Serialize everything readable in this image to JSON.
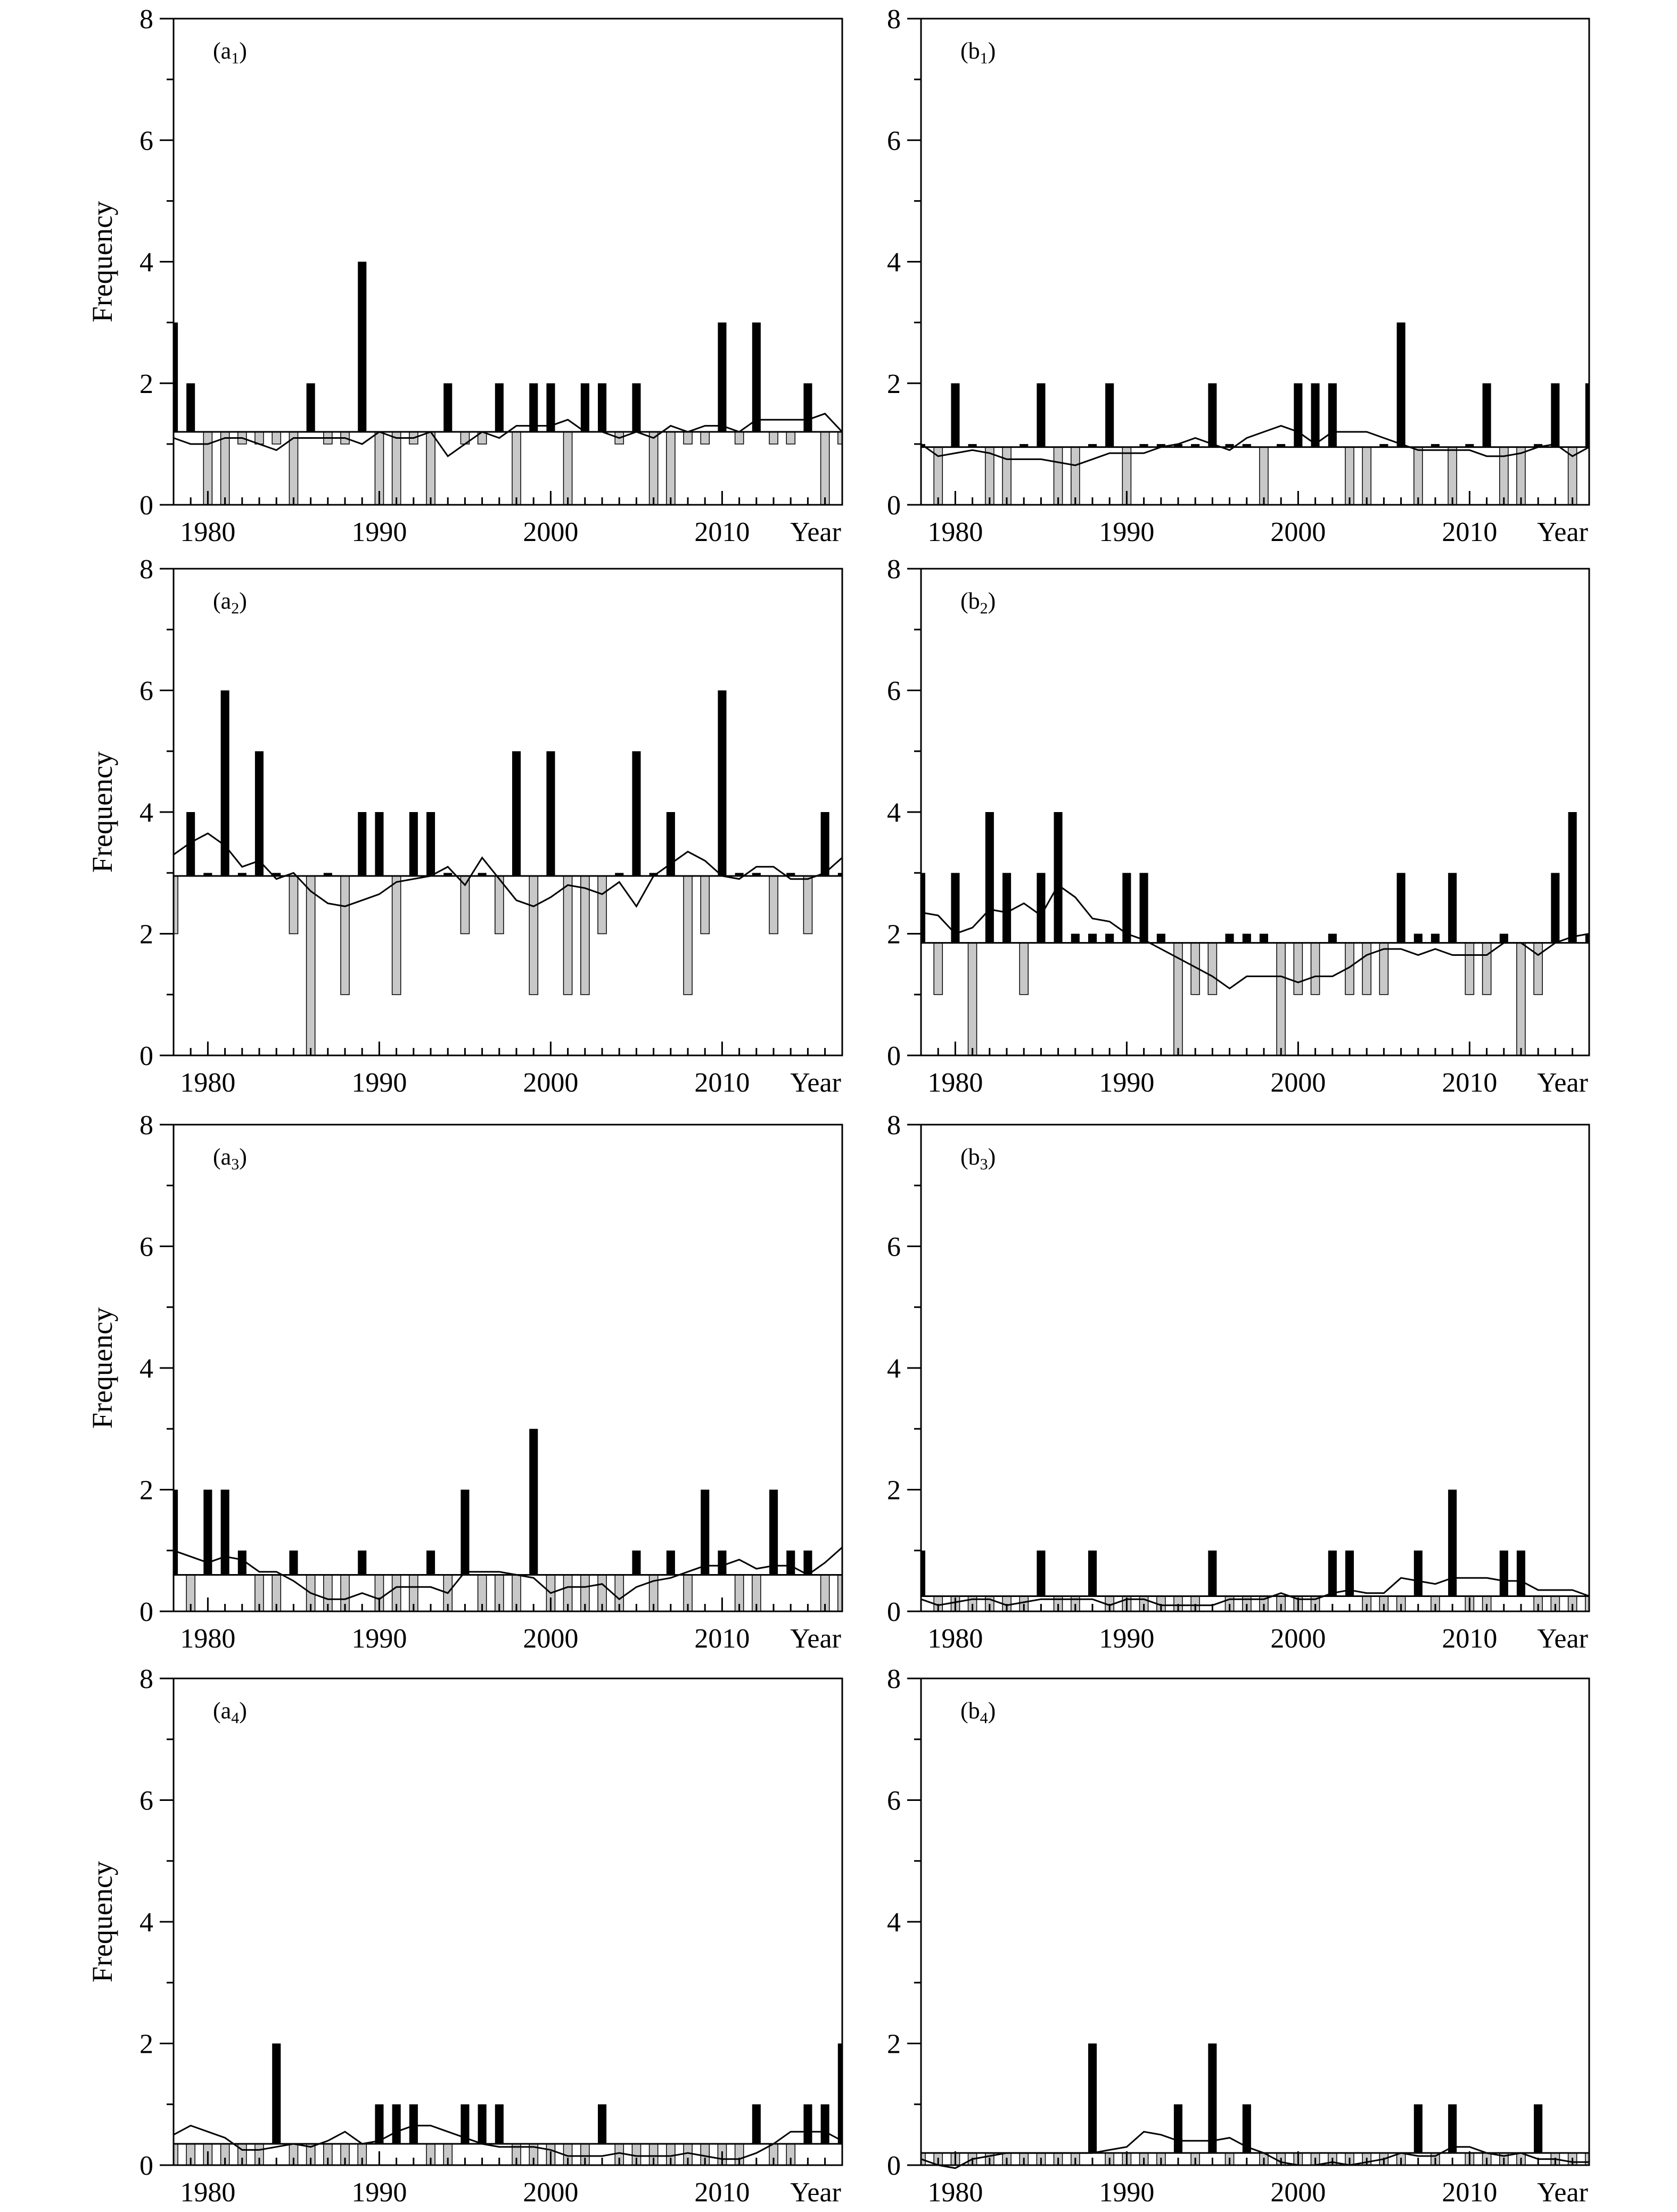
{
  "colors": {
    "above_bar": "#000000",
    "below_bar": "#c8c8c8",
    "line": "#000000",
    "axis": "#000000"
  },
  "chart_data": [
    {
      "type": "bar",
      "panel": "a1",
      "label_main": "(a",
      "label_sub": "1",
      "label_close": ")",
      "ylabel": "Frequency",
      "xlabel": "Year",
      "xlim": [
        1978,
        2017
      ],
      "ylim": [
        0,
        8
      ],
      "yticks": [
        0,
        2,
        4,
        6,
        8
      ],
      "xticks": [
        1980,
        1990,
        2000,
        2010
      ],
      "baseline": 1.2,
      "x": [
        1978,
        1979,
        1980,
        1981,
        1982,
        1983,
        1984,
        1985,
        1986,
        1987,
        1988,
        1989,
        1990,
        1991,
        1992,
        1993,
        1994,
        1995,
        1996,
        1997,
        1998,
        1999,
        2000,
        2001,
        2002,
        2003,
        2004,
        2005,
        2006,
        2007,
        2008,
        2009,
        2010,
        2011,
        2012,
        2013,
        2014,
        2015,
        2016,
        2017
      ],
      "values": [
        3,
        2,
        0,
        0,
        1,
        1,
        1,
        0,
        2,
        1,
        1,
        4,
        0,
        0,
        1,
        0,
        2,
        1,
        1,
        2,
        0,
        2,
        2,
        0,
        2,
        2,
        1,
        2,
        0,
        0,
        1,
        1,
        3,
        1,
        3,
        1,
        1,
        2,
        0,
        1
      ],
      "trend": [
        1.1,
        1.0,
        1.0,
        1.1,
        1.1,
        1.0,
        0.9,
        1.1,
        1.1,
        1.1,
        1.1,
        1.0,
        1.2,
        1.1,
        1.1,
        1.2,
        0.8,
        1.0,
        1.2,
        1.1,
        1.3,
        1.3,
        1.3,
        1.4,
        1.2,
        1.2,
        1.1,
        1.2,
        1.1,
        1.3,
        1.2,
        1.3,
        1.3,
        1.2,
        1.4,
        1.4,
        1.4,
        1.4,
        1.5,
        1.2
      ]
    },
    {
      "type": "bar",
      "panel": "b1",
      "label_main": "(b",
      "label_sub": "1",
      "label_close": ")",
      "xlabel": "Year",
      "xlim": [
        1978,
        2017
      ],
      "ylim": [
        0,
        8
      ],
      "yticks": [
        0,
        2,
        4,
        6,
        8
      ],
      "xticks": [
        1980,
        1990,
        2000,
        2010
      ],
      "baseline": 0.95,
      "x": [
        1978,
        1979,
        1980,
        1981,
        1982,
        1983,
        1984,
        1985,
        1986,
        1987,
        1988,
        1989,
        1990,
        1991,
        1992,
        1993,
        1994,
        1995,
        1996,
        1997,
        1998,
        1999,
        2000,
        2001,
        2002,
        2003,
        2004,
        2005,
        2006,
        2007,
        2008,
        2009,
        2010,
        2011,
        2012,
        2013,
        2014,
        2015,
        2016,
        2017
      ],
      "values": [
        1,
        0,
        2,
        1,
        0,
        0,
        1,
        2,
        0,
        0,
        1,
        2,
        0,
        1,
        1,
        1,
        1,
        2,
        1,
        1,
        0,
        1,
        2,
        2,
        2,
        0,
        0,
        1,
        3,
        0,
        1,
        0,
        1,
        2,
        0,
        0,
        1,
        2,
        0,
        2
      ],
      "trend": [
        1.0,
        0.8,
        0.85,
        0.9,
        0.85,
        0.75,
        0.75,
        0.75,
        0.7,
        0.65,
        0.75,
        0.85,
        0.85,
        0.85,
        0.95,
        1.0,
        1.1,
        1.0,
        0.9,
        1.1,
        1.2,
        1.3,
        1.2,
        1.0,
        1.2,
        1.2,
        1.2,
        1.1,
        1.0,
        0.9,
        0.9,
        0.9,
        0.9,
        0.8,
        0.8,
        0.85,
        0.95,
        1.0,
        0.8,
        0.95
      ]
    },
    {
      "type": "bar",
      "panel": "a2",
      "label_main": "(a",
      "label_sub": "2",
      "label_close": ")",
      "ylabel": "Frequency",
      "xlabel": "Year",
      "xlim": [
        1978,
        2017
      ],
      "ylim": [
        0,
        8
      ],
      "yticks": [
        0,
        2,
        4,
        6,
        8
      ],
      "xticks": [
        1980,
        1990,
        2000,
        2010
      ],
      "baseline": 2.95,
      "x": [
        1978,
        1979,
        1980,
        1981,
        1982,
        1983,
        1984,
        1985,
        1986,
        1987,
        1988,
        1989,
        1990,
        1991,
        1992,
        1993,
        1994,
        1995,
        1996,
        1997,
        1998,
        1999,
        2000,
        2001,
        2002,
        2003,
        2004,
        2005,
        2006,
        2007,
        2008,
        2009,
        2010,
        2011,
        2012,
        2013,
        2014,
        2015,
        2016,
        2017
      ],
      "values": [
        2,
        4,
        3,
        6,
        3,
        5,
        3,
        2,
        0,
        3,
        1,
        4,
        4,
        1,
        4,
        4,
        3,
        2,
        3,
        2,
        5,
        1,
        5,
        1,
        1,
        2,
        3,
        5,
        3,
        4,
        1,
        2,
        6,
        3,
        3,
        2,
        3,
        2,
        4,
        3
      ],
      "trend": [
        3.3,
        3.5,
        3.65,
        3.45,
        3.1,
        3.2,
        2.9,
        3.0,
        2.7,
        2.5,
        2.45,
        2.55,
        2.65,
        2.85,
        2.9,
        2.95,
        3.1,
        2.8,
        3.25,
        2.9,
        2.55,
        2.45,
        2.6,
        2.8,
        2.75,
        2.65,
        2.85,
        2.45,
        2.95,
        3.15,
        3.35,
        3.2,
        2.95,
        2.9,
        3.1,
        3.1,
        2.9,
        2.9,
        3.0,
        3.25
      ]
    },
    {
      "type": "bar",
      "panel": "b2",
      "label_main": "(b",
      "label_sub": "2",
      "label_close": ")",
      "xlabel": "Year",
      "xlim": [
        1978,
        2017
      ],
      "ylim": [
        0,
        8
      ],
      "yticks": [
        0,
        2,
        4,
        6,
        8
      ],
      "xticks": [
        1980,
        1990,
        2000,
        2010
      ],
      "baseline": 1.85,
      "x": [
        1978,
        1979,
        1980,
        1981,
        1982,
        1983,
        1984,
        1985,
        1986,
        1987,
        1988,
        1989,
        1990,
        1991,
        1992,
        1993,
        1994,
        1995,
        1996,
        1997,
        1998,
        1999,
        2000,
        2001,
        2002,
        2003,
        2004,
        2005,
        2006,
        2007,
        2008,
        2009,
        2010,
        2011,
        2012,
        2013,
        2014,
        2015,
        2016,
        2017
      ],
      "values": [
        3,
        1,
        3,
        0,
        4,
        3,
        1,
        3,
        4,
        2,
        2,
        2,
        3,
        3,
        2,
        0,
        1,
        1,
        2,
        2,
        2,
        0,
        1,
        1,
        2,
        1,
        1,
        1,
        3,
        2,
        2,
        3,
        1,
        1,
        2,
        0,
        1,
        3,
        4,
        2
      ],
      "trend": [
        2.35,
        2.3,
        2.0,
        2.1,
        2.4,
        2.35,
        2.5,
        2.3,
        2.8,
        2.6,
        2.25,
        2.2,
        2.0,
        1.9,
        1.75,
        1.6,
        1.45,
        1.3,
        1.1,
        1.3,
        1.3,
        1.3,
        1.2,
        1.3,
        1.3,
        1.45,
        1.65,
        1.75,
        1.75,
        1.65,
        1.75,
        1.65,
        1.65,
        1.65,
        1.85,
        1.85,
        1.65,
        1.85,
        1.95,
        2.0
      ]
    },
    {
      "type": "bar",
      "panel": "a3",
      "label_main": "(a",
      "label_sub": "3",
      "label_close": ")",
      "ylabel": "Frequency",
      "xlabel": "Year",
      "xlim": [
        1978,
        2017
      ],
      "ylim": [
        0,
        8
      ],
      "yticks": [
        0,
        2,
        4,
        6,
        8
      ],
      "xticks": [
        1980,
        1990,
        2000,
        2010
      ],
      "baseline": 0.6,
      "x": [
        1978,
        1979,
        1980,
        1981,
        1982,
        1983,
        1984,
        1985,
        1986,
        1987,
        1988,
        1989,
        1990,
        1991,
        1992,
        1993,
        1994,
        1995,
        1996,
        1997,
        1998,
        1999,
        2000,
        2001,
        2002,
        2003,
        2004,
        2005,
        2006,
        2007,
        2008,
        2009,
        2010,
        2011,
        2012,
        2013,
        2014,
        2015,
        2016,
        2017
      ],
      "values": [
        2,
        0,
        2,
        2,
        1,
        0,
        0,
        1,
        0,
        0,
        0,
        1,
        0,
        0,
        0,
        1,
        0,
        2,
        0,
        0,
        0,
        3,
        0,
        0,
        0,
        0,
        0,
        1,
        0,
        1,
        0,
        2,
        1,
        0,
        0,
        2,
        1,
        1,
        0,
        0
      ],
      "trend": [
        1.0,
        0.9,
        0.8,
        0.9,
        0.85,
        0.65,
        0.65,
        0.5,
        0.3,
        0.2,
        0.2,
        0.3,
        0.2,
        0.4,
        0.4,
        0.4,
        0.3,
        0.65,
        0.65,
        0.65,
        0.6,
        0.55,
        0.3,
        0.4,
        0.4,
        0.45,
        0.2,
        0.4,
        0.5,
        0.55,
        0.65,
        0.75,
        0.75,
        0.85,
        0.7,
        0.75,
        0.75,
        0.6,
        0.8,
        1.05
      ]
    },
    {
      "type": "bar",
      "panel": "b3",
      "label_main": "(b",
      "label_sub": "3",
      "label_close": ")",
      "xlabel": "Year",
      "xlim": [
        1978,
        2017
      ],
      "ylim": [
        0,
        8
      ],
      "yticks": [
        0,
        2,
        4,
        6,
        8
      ],
      "xticks": [
        1980,
        1990,
        2000,
        2010
      ],
      "baseline": 0.25,
      "x": [
        1978,
        1979,
        1980,
        1981,
        1982,
        1983,
        1984,
        1985,
        1986,
        1987,
        1988,
        1989,
        1990,
        1991,
        1992,
        1993,
        1994,
        1995,
        1996,
        1997,
        1998,
        1999,
        2000,
        2001,
        2002,
        2003,
        2004,
        2005,
        2006,
        2007,
        2008,
        2009,
        2010,
        2011,
        2012,
        2013,
        2014,
        2015,
        2016,
        2017
      ],
      "values": [
        1,
        0,
        0,
        0,
        0,
        0,
        0,
        1,
        0,
        0,
        1,
        0,
        0,
        0,
        0,
        0,
        0,
        1,
        0,
        0,
        0,
        0,
        0,
        0,
        1,
        1,
        0,
        0,
        0,
        1,
        0,
        2,
        0,
        0,
        1,
        1,
        0,
        0,
        0,
        0
      ],
      "trend": [
        0.2,
        0.1,
        0.15,
        0.2,
        0.2,
        0.1,
        0.15,
        0.2,
        0.2,
        0.2,
        0.2,
        0.1,
        0.2,
        0.2,
        0.1,
        0.1,
        0.1,
        0.1,
        0.2,
        0.2,
        0.2,
        0.3,
        0.2,
        0.2,
        0.3,
        0.35,
        0.3,
        0.3,
        0.55,
        0.5,
        0.45,
        0.55,
        0.55,
        0.55,
        0.5,
        0.5,
        0.35,
        0.35,
        0.35,
        0.25
      ]
    },
    {
      "type": "bar",
      "panel": "a4",
      "label_main": "(a",
      "label_sub": "4",
      "label_close": ")",
      "ylabel": "Frequency",
      "xlabel": "Year",
      "xlim": [
        1978,
        2017
      ],
      "ylim": [
        0,
        8
      ],
      "yticks": [
        0,
        2,
        4,
        6,
        8
      ],
      "xticks": [
        1980,
        1990,
        2000,
        2010
      ],
      "baseline": 0.35,
      "x": [
        1978,
        1979,
        1980,
        1981,
        1982,
        1983,
        1984,
        1985,
        1986,
        1987,
        1988,
        1989,
        1990,
        1991,
        1992,
        1993,
        1994,
        1995,
        1996,
        1997,
        1998,
        1999,
        2000,
        2001,
        2002,
        2003,
        2004,
        2005,
        2006,
        2007,
        2008,
        2009,
        2010,
        2011,
        2012,
        2013,
        2014,
        2015,
        2016,
        2017
      ],
      "values": [
        0,
        0,
        0,
        0,
        0,
        0,
        2,
        0,
        0,
        0,
        0,
        0,
        1,
        1,
        1,
        0,
        0,
        1,
        1,
        1,
        0,
        0,
        0,
        0,
        0,
        1,
        0,
        0,
        0,
        0,
        0,
        0,
        0,
        0,
        1,
        0,
        0,
        1,
        1,
        2
      ],
      "trend": [
        0.5,
        0.65,
        0.55,
        0.45,
        0.25,
        0.25,
        0.3,
        0.35,
        0.3,
        0.4,
        0.55,
        0.35,
        0.4,
        0.55,
        0.65,
        0.65,
        0.55,
        0.45,
        0.35,
        0.3,
        0.3,
        0.3,
        0.25,
        0.15,
        0.15,
        0.15,
        0.2,
        0.15,
        0.15,
        0.15,
        0.2,
        0.15,
        0.1,
        0.1,
        0.2,
        0.35,
        0.55,
        0.55,
        0.55,
        0.4
      ]
    },
    {
      "type": "bar",
      "panel": "b4",
      "label_main": "(b",
      "label_sub": "4",
      "label_close": ")",
      "xlabel": "Year",
      "xlim": [
        1978,
        2017
      ],
      "ylim": [
        0,
        8
      ],
      "yticks": [
        0,
        2,
        4,
        6,
        8
      ],
      "xticks": [
        1980,
        1990,
        2000,
        2010
      ],
      "baseline": 0.2,
      "x": [
        1978,
        1979,
        1980,
        1981,
        1982,
        1983,
        1984,
        1985,
        1986,
        1987,
        1988,
        1989,
        1990,
        1991,
        1992,
        1993,
        1994,
        1995,
        1996,
        1997,
        1998,
        1999,
        2000,
        2001,
        2002,
        2003,
        2004,
        2005,
        2006,
        2007,
        2008,
        2009,
        2010,
        2011,
        2012,
        2013,
        2014,
        2015,
        2016,
        2017
      ],
      "values": [
        0,
        0,
        0,
        0,
        0,
        0,
        0,
        0,
        0,
        0,
        2,
        0,
        0,
        0,
        0,
        1,
        0,
        2,
        0,
        1,
        0,
        0,
        0,
        0,
        0,
        0,
        0,
        0,
        0,
        1,
        0,
        1,
        0,
        0,
        0,
        0,
        1,
        0,
        0,
        0
      ],
      "trend": [
        0.1,
        0.0,
        -0.05,
        0.1,
        0.15,
        0.2,
        0.2,
        0.2,
        0.2,
        0.2,
        0.2,
        0.25,
        0.3,
        0.55,
        0.5,
        0.4,
        0.4,
        0.4,
        0.45,
        0.3,
        0.2,
        0.05,
        0.0,
        0.0,
        0.05,
        0.0,
        0.05,
        0.1,
        0.2,
        0.15,
        0.15,
        0.3,
        0.3,
        0.2,
        0.15,
        0.2,
        0.1,
        0.1,
        0.05,
        0.05
      ]
    }
  ]
}
